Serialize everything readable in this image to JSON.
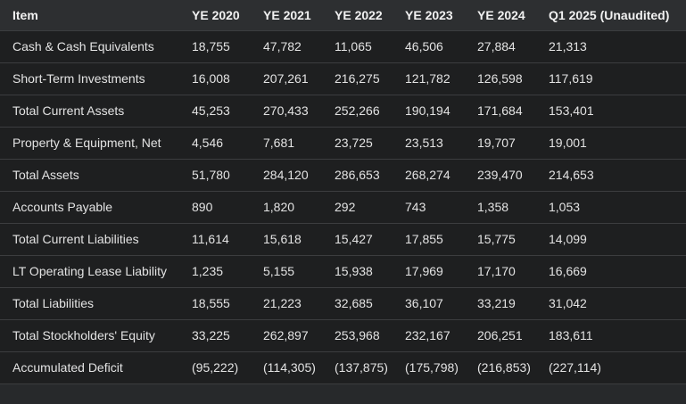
{
  "table": {
    "columns": [
      "Item",
      "YE 2020",
      "YE 2021",
      "YE 2022",
      "YE 2023",
      "YE 2024",
      "Q1 2025 (Unaudited)"
    ],
    "rows": [
      [
        "Cash & Cash Equivalents",
        "18,755",
        "47,782",
        "11,065",
        "46,506",
        "27,884",
        "21,313"
      ],
      [
        "Short-Term Investments",
        "16,008",
        "207,261",
        "216,275",
        "121,782",
        "126,598",
        "117,619"
      ],
      [
        "Total Current Assets",
        "45,253",
        "270,433",
        "252,266",
        "190,194",
        "171,684",
        "153,401"
      ],
      [
        "Property & Equipment, Net",
        "4,546",
        "7,681",
        "23,725",
        "23,513",
        "19,707",
        "19,001"
      ],
      [
        "Total Assets",
        "51,780",
        "284,120",
        "286,653",
        "268,274",
        "239,470",
        "214,653"
      ],
      [
        "Accounts Payable",
        "890",
        "1,820",
        "292",
        "743",
        "1,358",
        "1,053"
      ],
      [
        "Total Current Liabilities",
        "11,614",
        "15,618",
        "15,427",
        "17,855",
        "15,775",
        "14,099"
      ],
      [
        "LT Operating Lease Liability",
        "1,235",
        "5,155",
        "15,938",
        "17,969",
        "17,170",
        "16,669"
      ],
      [
        "Total Liabilities",
        "18,555",
        "21,223",
        "32,685",
        "36,107",
        "33,219",
        "31,042"
      ],
      [
        "Total Stockholders' Equity",
        "33,225",
        "262,897",
        "253,968",
        "232,167",
        "206,251",
        "183,611"
      ],
      [
        "Accumulated Deficit",
        "(95,222)",
        "(114,305)",
        "(137,875)",
        "(175,798)",
        "(216,853)",
        "(227,114)"
      ]
    ]
  }
}
